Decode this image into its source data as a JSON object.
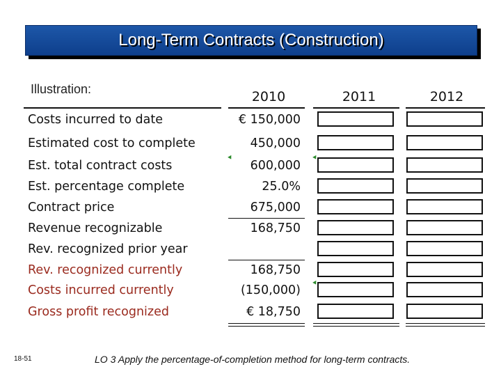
{
  "title": "Long-Term Contracts (Construction)",
  "illustration_label": "Illustration:",
  "years": [
    "2010",
    "2011",
    "2012"
  ],
  "rows": [
    {
      "label": "Costs incurred to date",
      "value": "€ 150,000",
      "red": false
    },
    {
      "label": "Estimated cost to complete",
      "value": "450,000",
      "red": false
    },
    {
      "label": "Est. total contract costs",
      "value": "600,000",
      "red": false
    },
    {
      "label": "Est. percentage complete",
      "value": "25.0%",
      "red": false
    },
    {
      "label": "Contract price",
      "value": "675,000",
      "red": false
    },
    {
      "label": "Revenue recognizable",
      "value": "168,750",
      "red": false
    },
    {
      "label": "Rev. recognized prior year",
      "value": "",
      "red": false
    },
    {
      "label": "Rev. recognized currently",
      "value": "168,750",
      "red": true
    },
    {
      "label": "Costs incurred currently",
      "value": "(150,000)",
      "red": true
    },
    {
      "label": "Gross profit recognized",
      "value": "€ 18,750",
      "red": true
    }
  ],
  "slide_number": "18-51",
  "footer": {
    "lo": "LO 3",
    "text": "Apply the percentage-of-completion method for long-term contracts."
  },
  "colors": {
    "title_bar": "#1d57a8",
    "red_label": "#9a2a1e",
    "tick": "#2a8a2a"
  }
}
